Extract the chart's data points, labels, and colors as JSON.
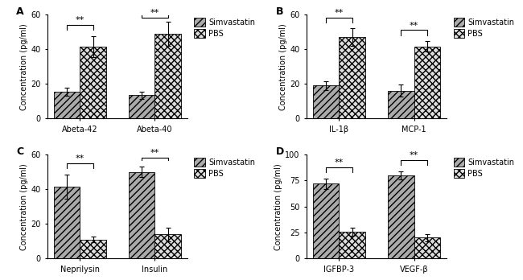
{
  "panels": [
    {
      "label": "A",
      "ylabel": "Concentration (pg/ml)",
      "ylim": [
        0,
        60
      ],
      "yticks": [
        0,
        20,
        40,
        60
      ],
      "groups": [
        "Abeta-42",
        "Abeta-40"
      ],
      "simvastatin_vals": [
        15.5,
        13.5
      ],
      "simvastatin_errs": [
        2.5,
        2.0
      ],
      "pbs_vals": [
        41.5,
        49.0
      ],
      "pbs_errs": [
        6.0,
        7.0
      ]
    },
    {
      "label": "B",
      "ylabel": "Concentration (pg/ml)",
      "ylim": [
        0,
        60
      ],
      "yticks": [
        0,
        20,
        40,
        60
      ],
      "groups": [
        "IL-1β",
        "MCP-1"
      ],
      "simvastatin_vals": [
        19.0,
        16.0
      ],
      "simvastatin_errs": [
        2.5,
        3.5
      ],
      "pbs_vals": [
        47.0,
        41.5
      ],
      "pbs_errs": [
        5.0,
        3.0
      ]
    },
    {
      "label": "C",
      "ylabel": "Concentration (pg/ml)",
      "ylim": [
        0,
        60
      ],
      "yticks": [
        0,
        20,
        40,
        60
      ],
      "groups": [
        "Neprilysin",
        "Insulin"
      ],
      "simvastatin_vals": [
        41.5,
        50.0
      ],
      "simvastatin_errs": [
        7.0,
        3.0
      ],
      "pbs_vals": [
        11.0,
        14.0
      ],
      "pbs_errs": [
        1.5,
        4.0
      ]
    },
    {
      "label": "D",
      "ylabel": "Concentration (pg/ml)",
      "ylim": [
        0,
        100
      ],
      "yticks": [
        0,
        25,
        50,
        75,
        100
      ],
      "groups": [
        "IGFBP-3",
        "VEGF-β"
      ],
      "simvastatin_vals": [
        72.0,
        80.0
      ],
      "simvastatin_errs": [
        5.0,
        4.0
      ],
      "pbs_vals": [
        26.0,
        20.0
      ],
      "pbs_errs": [
        4.0,
        3.5
      ]
    }
  ],
  "simvastatin_hatch": "////",
  "pbs_hatch": "xxxx",
  "simvastatin_color": "#aaaaaa",
  "pbs_color": "#dddddd",
  "bar_edgecolor": "#000000",
  "bar_width": 0.35,
  "significance_text": "**",
  "legend_labels": [
    "Simvastatin",
    "PBS"
  ],
  "background_color": "#ffffff",
  "font_size": 7,
  "label_fontsize": 9
}
